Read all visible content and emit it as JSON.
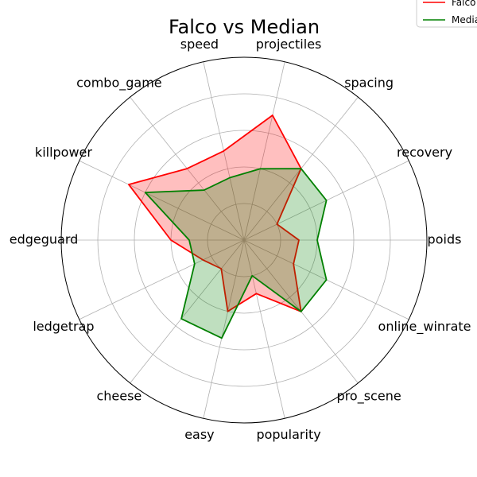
{
  "chart_data": {
    "type": "radar",
    "title": "Falco vs Median",
    "categories": [
      "poids",
      "recovery",
      "spacing",
      "projectiles",
      "speed",
      "combo_game",
      "killpower",
      "edgeguard",
      "ledgetrap",
      "cheese",
      "easy",
      "popularity",
      "pro_scene",
      "online_winrate"
    ],
    "rmax": 10,
    "grid": true,
    "grid_levels": [
      2,
      4,
      6,
      8
    ],
    "legend_position": "top-right",
    "series": [
      {
        "name": "Falco",
        "color": "#ff0000",
        "fill": "#ff0000",
        "fill_opacity": 0.25,
        "values": [
          3.0,
          2.0,
          5.0,
          7.0,
          5.0,
          5.0,
          7.0,
          4.0,
          2.5,
          2.0,
          4.0,
          3.0,
          5.0,
          3.0
        ]
      },
      {
        "name": "Median",
        "color": "#008000",
        "fill": "#008000",
        "fill_opacity": 0.25,
        "values": [
          4.0,
          5.0,
          5.0,
          4.0,
          3.5,
          3.5,
          6.0,
          3.0,
          3.0,
          5.5,
          5.5,
          2.0,
          5.0,
          5.0
        ]
      }
    ],
    "legend": {
      "labels": [
        "Falco",
        "Median"
      ]
    }
  }
}
